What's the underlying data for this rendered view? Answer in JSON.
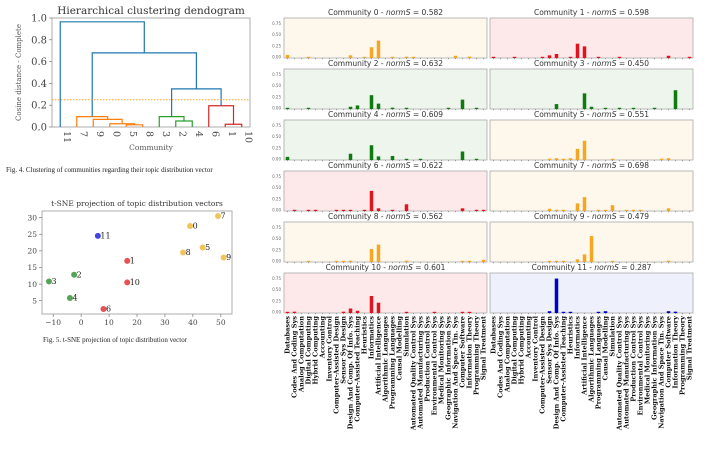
{
  "figure4": {
    "caption": "Fig. 4.  Clustering of communities regarding their topic distribution vector",
    "chart_data": {
      "type": "dendrogram",
      "title": "Hierarchical clustering dendogram",
      "xlabel": "Community",
      "ylabel": "Cosine distance - Complete",
      "ylim": [
        0,
        1.0
      ],
      "yticks": [
        "0.0",
        "0.2",
        "0.4",
        "0.6",
        "0.8",
        "1.0"
      ],
      "leaf_order": [
        "11",
        "7",
        "9",
        "0",
        "5",
        "8",
        "3",
        "2",
        "4",
        "6",
        "1",
        "10"
      ],
      "threshold": 0.25,
      "threshold_color": "#ff9f1a",
      "merges": [
        {
          "left": "5",
          "right": "8",
          "height": 0.02,
          "color": "#ff7f0e"
        },
        {
          "left": "0",
          "right": "5-8",
          "height": 0.03,
          "color": "#ff7f0e"
        },
        {
          "left": "9",
          "right": "0-5-8",
          "height": 0.07,
          "color": "#ff7f0e"
        },
        {
          "left": "7",
          "right": "9-0-5-8",
          "height": 0.095,
          "color": "#ff7f0e"
        },
        {
          "left": "2",
          "right": "4",
          "height": 0.055,
          "color": "#2ca02c"
        },
        {
          "left": "3",
          "right": "2-4",
          "height": 0.095,
          "color": "#2ca02c"
        },
        {
          "left": "1",
          "right": "10",
          "height": 0.025,
          "color": "#d62728"
        },
        {
          "left": "6",
          "right": "1-10",
          "height": 0.195,
          "color": "#d62728"
        },
        {
          "left": "green",
          "right": "red",
          "height": 0.35,
          "color": "#1f77b4"
        },
        {
          "left": "orange",
          "right": "green-red",
          "height": 0.68,
          "color": "#1f77b4"
        },
        {
          "left": "11",
          "right": "rest",
          "height": 0.965,
          "color": "#1f77b4"
        }
      ]
    }
  },
  "figure5": {
    "caption": "Fig. 5.  t-SNE projection of topic distribution vector",
    "chart_data": {
      "type": "scatter",
      "title": "t-SNE projection of topic distribution vectors",
      "xlim": [
        -14,
        54
      ],
      "ylim": [
        1,
        32
      ],
      "xticks": [
        -10,
        0,
        10,
        20,
        30,
        40,
        50
      ],
      "yticks": [
        5,
        10,
        15,
        20,
        25,
        30
      ],
      "points": [
        {
          "label": "0",
          "x": 39,
          "y": 27.5,
          "color": "#f0c050"
        },
        {
          "label": "1",
          "x": 16.5,
          "y": 17,
          "color": "#e8474a"
        },
        {
          "label": "2",
          "x": -2.5,
          "y": 12.8,
          "color": "#4c9e4c"
        },
        {
          "label": "3",
          "x": -11.5,
          "y": 10.8,
          "color": "#4c9e4c"
        },
        {
          "label": "4",
          "x": -4,
          "y": 5.8,
          "color": "#4c9e4c"
        },
        {
          "label": "5",
          "x": 43.5,
          "y": 21,
          "color": "#f0c050"
        },
        {
          "label": "6",
          "x": 8,
          "y": 2.5,
          "color": "#e8474a"
        },
        {
          "label": "7",
          "x": 49,
          "y": 30.5,
          "color": "#f0c050"
        },
        {
          "label": "8",
          "x": 36.5,
          "y": 19.5,
          "color": "#f0c050"
        },
        {
          "label": "9",
          "x": 51,
          "y": 18,
          "color": "#f0c050"
        },
        {
          "label": "10",
          "x": 16.5,
          "y": 10.5,
          "color": "#e8474a"
        },
        {
          "label": "11",
          "x": 6,
          "y": 24.5,
          "color": "#3a3ae0"
        }
      ]
    }
  },
  "bars": {
    "chart_data": {
      "type": "bar",
      "ylim": [
        0,
        0.85
      ],
      "yticks": [
        "0.00",
        "0.25",
        "0.50",
        "0.75"
      ],
      "categories": [
        "Databases",
        "Codes And Coding Sys",
        "Analog Computation",
        "Digital Computing",
        "Hybrid Computing",
        "Accounting",
        "Inventory Control",
        "Computer-Assisted Design",
        "Sensor Sys Design",
        "Design And Comp. Of Info. Sys",
        "Computer-Assisted Teaching",
        "Heuristics",
        "Informatics",
        "Artificial Intelligence",
        "Algorithmic Languages",
        "Programming Languages",
        "Causal Modelling",
        "Simulation",
        "Automated Quality Control Sys",
        "Automated Manufacturing Sys",
        "Production Control Sys",
        "Environmental Control Sys",
        "Medical Monitoring Sys",
        "Geographic Information Sys",
        "Navigation And Space Tin. Sys",
        "Computer Software",
        "Information Theory",
        "Programming Theory",
        "Signal Treatment"
      ],
      "panels": [
        {
          "community": "0",
          "norm_s": "0.582",
          "color": "#f5a623",
          "bg": "#fef8ec",
          "values": [
            0.07,
            0,
            0,
            0.02,
            0,
            0,
            0,
            0,
            0,
            0.06,
            0,
            0.01,
            0.24,
            0.39,
            0,
            0.02,
            0,
            0.03,
            0.01,
            0,
            0,
            0,
            0,
            0,
            0.05,
            0,
            0.03,
            0,
            0
          ]
        },
        {
          "community": "1",
          "norm_s": "0.598",
          "color": "#e0141e",
          "bg": "#fde9ea",
          "values": [
            0.01,
            0,
            0,
            0.01,
            0,
            0,
            0,
            0.01,
            0.06,
            0.09,
            0,
            0.01,
            0.32,
            0.26,
            0,
            0.01,
            0,
            0,
            0.01,
            0,
            0,
            0,
            0,
            0,
            0,
            0.05,
            0,
            0,
            0.01
          ]
        },
        {
          "community": "2",
          "norm_s": "0.632",
          "color": "#0f7a0f",
          "bg": "#edf5ed",
          "values": [
            0.01,
            0,
            0,
            0.01,
            0,
            0,
            0,
            0,
            0,
            0.05,
            0.08,
            0,
            0.31,
            0.12,
            0,
            0.03,
            0,
            0.01,
            0,
            0,
            0,
            0,
            0,
            0.01,
            0,
            0.21,
            0,
            0.01,
            0
          ]
        },
        {
          "community": "3",
          "norm_s": "0.450",
          "color": "#0f7a0f",
          "bg": "#edf5ed",
          "values": [
            0,
            0,
            0,
            0,
            0,
            0,
            0,
            0,
            0,
            0.11,
            0,
            0,
            0,
            0.35,
            0.05,
            0,
            0.01,
            0,
            0.01,
            0,
            0.01,
            0,
            0,
            0.01,
            0,
            0,
            0.42,
            0,
            0
          ]
        },
        {
          "community": "4",
          "norm_s": "0.609",
          "color": "#0f7a0f",
          "bg": "#edf5ed",
          "values": [
            0.07,
            0,
            0,
            0,
            0,
            0,
            0,
            0,
            0,
            0.14,
            0,
            0,
            0.33,
            0.08,
            0,
            0.09,
            0,
            0.01,
            0,
            0.01,
            0,
            0,
            0,
            0,
            0,
            0.19,
            0,
            0.01,
            0
          ]
        },
        {
          "community": "5",
          "norm_s": "0.551",
          "color": "#f5a623",
          "bg": "#fef8ec",
          "values": [
            0,
            0,
            0,
            0,
            0,
            0,
            0,
            0,
            0.02,
            0.04,
            0.01,
            0.04,
            0.25,
            0.43,
            0,
            0,
            0,
            0.02,
            0,
            0,
            0,
            0,
            0,
            0,
            0.01,
            0.04,
            0,
            0,
            0
          ]
        },
        {
          "community": "6",
          "norm_s": "0.622",
          "color": "#e0141e",
          "bg": "#fde9ea",
          "values": [
            0,
            0.02,
            0,
            0.02,
            0.02,
            0,
            0,
            0.01,
            0.02,
            0.02,
            0,
            0.01,
            0.45,
            0.06,
            0,
            0.01,
            0,
            0.15,
            0,
            0,
            0,
            0,
            0,
            0,
            0,
            0.06,
            0,
            0.01,
            0.02
          ]
        },
        {
          "community": "7",
          "norm_s": "0.698",
          "color": "#f5a623",
          "bg": "#fef8ec",
          "values": [
            0,
            0,
            0,
            0,
            0,
            0,
            0,
            0,
            0.05,
            0.01,
            0.01,
            0,
            0.17,
            0.31,
            0,
            0.01,
            0.01,
            0.13,
            0,
            0.02,
            0.01,
            0.01,
            0,
            0,
            0,
            0.06,
            0,
            0,
            0
          ]
        },
        {
          "community": "8",
          "norm_s": "0.562",
          "color": "#f5a623",
          "bg": "#fef8ec",
          "values": [
            0,
            0,
            0,
            0.01,
            0,
            0,
            0,
            0.02,
            0.02,
            0.03,
            0,
            0,
            0.29,
            0.39,
            0,
            0,
            0,
            0.03,
            0,
            0,
            0,
            0,
            0,
            0,
            0,
            0.02,
            0.01,
            0,
            0.05
          ]
        },
        {
          "community": "9",
          "norm_s": "0.479",
          "color": "#f5a623",
          "bg": "#fef8ec",
          "values": [
            0,
            0,
            0,
            0,
            0,
            0,
            0,
            0,
            0.01,
            0.01,
            0.01,
            0,
            0.06,
            0.17,
            0.58,
            0,
            0,
            0.01,
            0,
            0,
            0,
            0,
            0,
            0,
            0,
            0.03,
            0,
            0,
            0
          ]
        },
        {
          "community": "10",
          "norm_s": "0.601",
          "color": "#e0141e",
          "bg": "#fde9ea",
          "values": [
            0.02,
            0.03,
            0,
            0,
            0,
            0,
            0,
            0,
            0.03,
            0.1,
            0.05,
            0,
            0.38,
            0.23,
            0,
            0,
            0,
            0.01,
            0,
            0,
            0,
            0.01,
            0,
            0,
            0,
            0.02,
            0.01,
            0,
            0
          ]
        },
        {
          "community": "11",
          "norm_s": "0.287",
          "color": "#0000c8",
          "bg": "#eef0fb",
          "values": [
            0,
            0,
            0,
            0,
            0,
            0,
            0,
            0,
            0.04,
            0.77,
            0.01,
            0.02,
            0,
            0,
            0,
            0.01,
            0.04,
            0,
            0,
            0,
            0,
            0,
            0,
            0,
            0,
            0.04,
            0.03,
            0,
            0
          ]
        }
      ]
    }
  }
}
